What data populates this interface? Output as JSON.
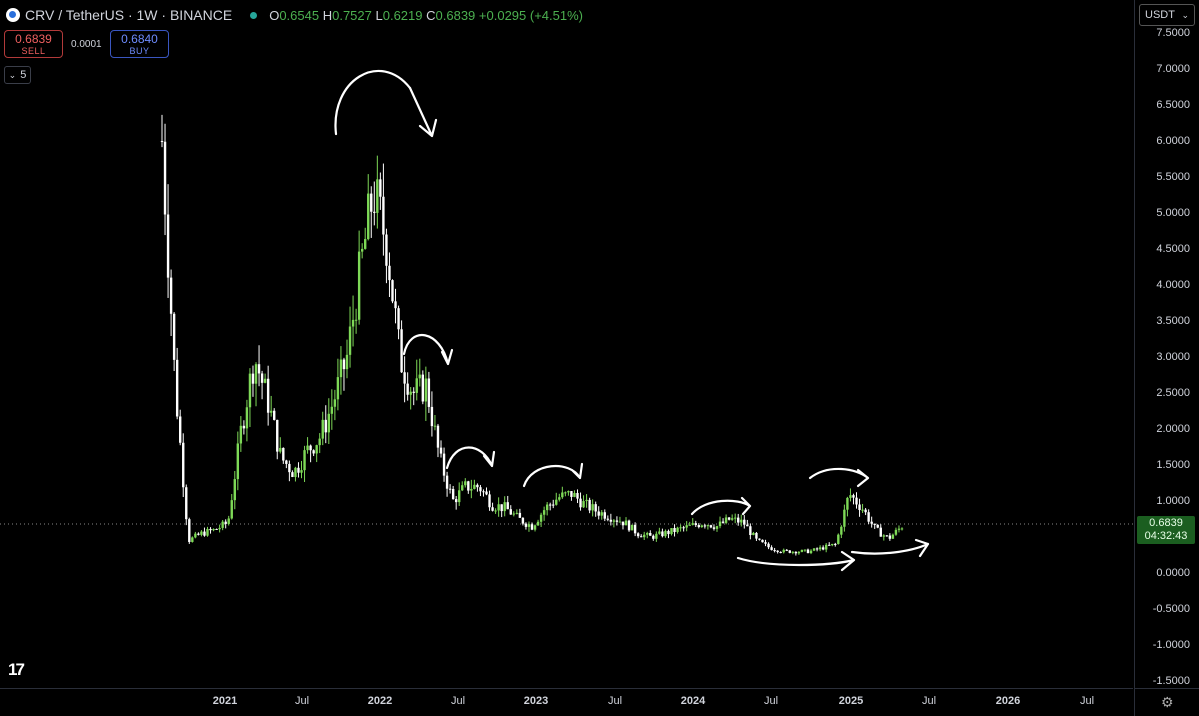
{
  "header": {
    "symbol": "CRV / TetherUS · 1W · BINANCE",
    "ohlc_prefix_o": "O",
    "open": "0.6545",
    "ohlc_prefix_h": "H",
    "high": "0.7527",
    "ohlc_prefix_l": "L",
    "low": "0.6219",
    "ohlc_prefix_c": "C",
    "close": "0.6839",
    "change": "+0.0295 (+4.51%)"
  },
  "trade": {
    "sell_price": "0.6839",
    "sell_label": "SELL",
    "spread": "0.0001",
    "buy_price": "0.6840",
    "buy_label": "BUY"
  },
  "indicators_count": "5",
  "currency": "USDT",
  "current_price": "0.6839",
  "countdown": "04:32:43",
  "price_axis": [
    "7.5000",
    "7.0000",
    "6.5000",
    "6.0000",
    "5.5000",
    "5.0000",
    "4.5000",
    "4.0000",
    "3.5000",
    "3.0000",
    "2.5000",
    "2.0000",
    "1.5000",
    "1.0000",
    "0.0000",
    "-0.5000",
    "-1.0000",
    "-1.5000"
  ],
  "time_axis": [
    {
      "label": "2021",
      "bold": true
    },
    {
      "label": "Jul",
      "bold": false
    },
    {
      "label": "2022",
      "bold": true
    },
    {
      "label": "Jul",
      "bold": false
    },
    {
      "label": "2023",
      "bold": true
    },
    {
      "label": "Jul",
      "bold": false
    },
    {
      "label": "2024",
      "bold": true
    },
    {
      "label": "Jul",
      "bold": false
    },
    {
      "label": "2025",
      "bold": true
    },
    {
      "label": "Jul",
      "bold": false
    },
    {
      "label": "2026",
      "bold": true
    },
    {
      "label": "Jul",
      "bold": false
    }
  ],
  "colors": {
    "up": "#7ed957",
    "down": "#ffffff",
    "background": "#000000",
    "price_label": "#1b5e20"
  },
  "chart_data": {
    "type": "line",
    "title": "",
    "xlabel": "",
    "ylabel": "",
    "ylim": [
      -1.5,
      7.5
    ],
    "x": [
      "2020-08",
      "2020-09",
      "2020-10",
      "2020-11",
      "2020-12",
      "2021-01",
      "2021-02",
      "2021-03",
      "2021-04",
      "2021-05",
      "2021-06",
      "2021-07",
      "2021-08",
      "2021-09",
      "2021-10",
      "2021-11",
      "2021-12",
      "2022-01",
      "2022-02",
      "2022-03",
      "2022-04",
      "2022-05",
      "2022-06",
      "2022-07",
      "2022-08",
      "2022-09",
      "2022-10",
      "2022-11",
      "2022-12",
      "2023-01",
      "2023-02",
      "2023-03",
      "2023-04",
      "2023-05",
      "2023-06",
      "2023-07",
      "2023-08",
      "2023-09",
      "2023-10",
      "2023-11",
      "2023-12",
      "2024-01",
      "2024-02",
      "2024-03",
      "2024-04",
      "2024-05",
      "2024-06",
      "2024-07",
      "2024-08",
      "2024-09",
      "2024-10",
      "2024-11",
      "2024-12",
      "2025-01",
      "2025-02",
      "2025-03",
      "2025-04"
    ],
    "series": [
      {
        "values": [
          6.0,
          2.6,
          0.45,
          0.55,
          0.6,
          0.7,
          2.0,
          3.0,
          2.4,
          1.6,
          1.4,
          1.7,
          1.9,
          2.4,
          3.0,
          4.2,
          5.3,
          4.6,
          3.0,
          2.5,
          2.6,
          1.6,
          1.0,
          1.2,
          1.2,
          0.95,
          0.9,
          0.75,
          0.65,
          0.9,
          1.05,
          1.1,
          0.95,
          0.85,
          0.78,
          0.7,
          0.55,
          0.5,
          0.55,
          0.6,
          0.65,
          0.7,
          0.65,
          0.75,
          0.7,
          0.45,
          0.35,
          0.3,
          0.3,
          0.3,
          0.35,
          0.4,
          1.1,
          0.9,
          0.6,
          0.48,
          0.65
        ]
      }
    ]
  }
}
